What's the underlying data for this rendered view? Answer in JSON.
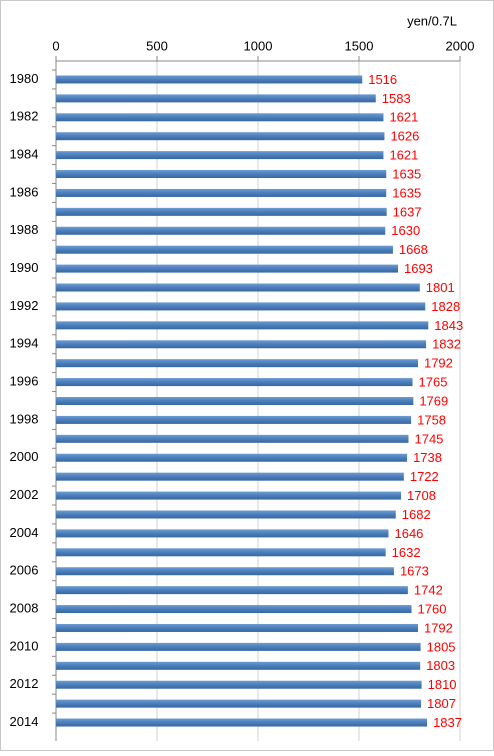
{
  "chart_data": {
    "type": "bar",
    "orientation": "horizontal",
    "x_label": "yen/0.7L",
    "categories": [
      "1980",
      null,
      "1982",
      null,
      "1984",
      null,
      "1986",
      null,
      "1988",
      null,
      "1990",
      null,
      "1992",
      null,
      "1994",
      null,
      "1996",
      null,
      "1998",
      null,
      "2000",
      null,
      "2002",
      null,
      "2004",
      null,
      "2006",
      null,
      "2008",
      null,
      "2010",
      null,
      "2012",
      null,
      "2014"
    ],
    "values": [
      1516,
      1583,
      1621,
      1626,
      1621,
      1635,
      1635,
      1637,
      1630,
      1668,
      1693,
      1801,
      1828,
      1843,
      1832,
      1792,
      1765,
      1769,
      1758,
      1745,
      1738,
      1722,
      1708,
      1682,
      1646,
      1632,
      1673,
      1742,
      1760,
      1792,
      1805,
      1803,
      1810,
      1807,
      1837
    ],
    "color": "#4a7ebb",
    "label_color": "#ff0000",
    "xlim": [
      0,
      2000
    ],
    "xticks": [
      0,
      500,
      1000,
      1500,
      2000
    ],
    "grid": true
  }
}
